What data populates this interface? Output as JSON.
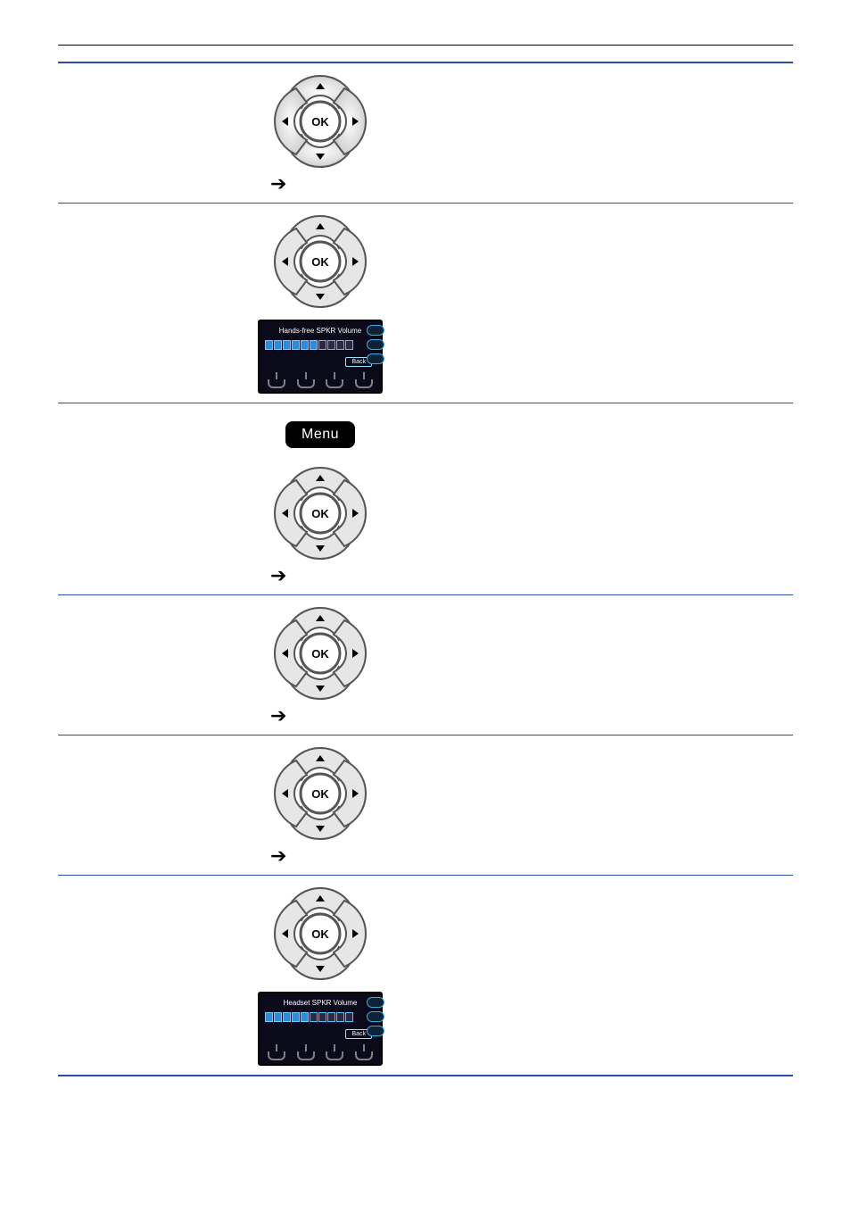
{
  "icons": {
    "ok_label": "OK",
    "menu_label": "Menu",
    "arrow_glyph": "➔"
  },
  "screens": {
    "handsfree": {
      "title": "Hands-free SPKR Volume",
      "back_label": "Back",
      "segments_total": 10,
      "segments_on": 6
    },
    "headset": {
      "title": "Headset SPKR Volume",
      "back_label": "Back",
      "segments_total": 10,
      "segments_on": 5
    }
  },
  "style": {
    "line_color": "#2e4ea0",
    "page_bg": "#ffffff"
  }
}
